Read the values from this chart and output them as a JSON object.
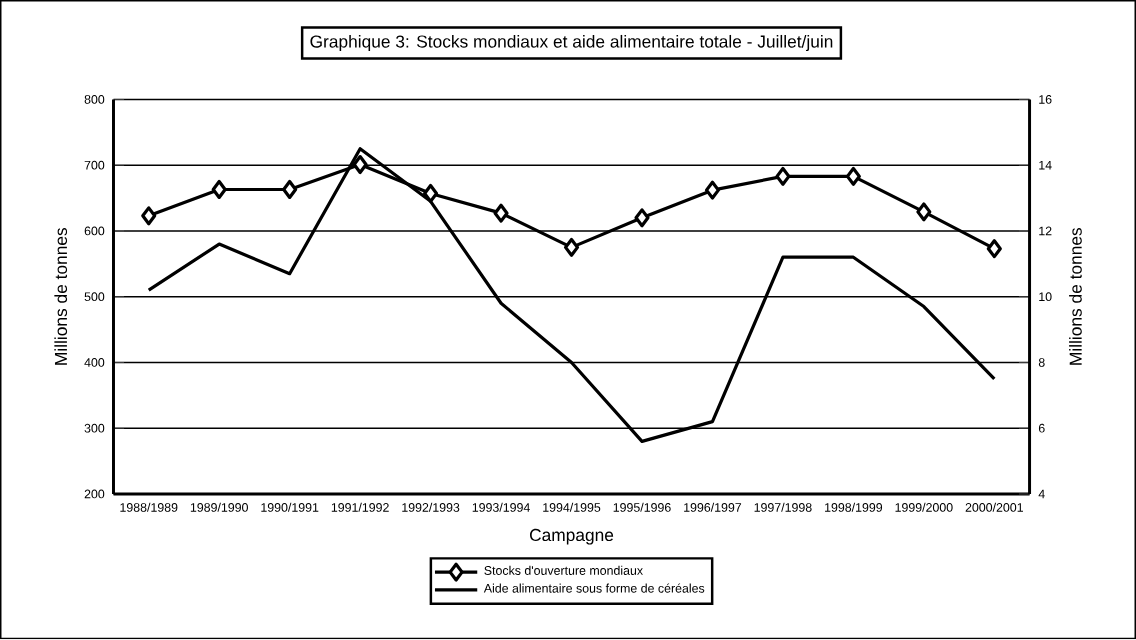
{
  "chart_data": {
    "type": "line",
    "title": "Graphique 3: Stocks mondiaux et aide alimentaire totale - Juillet/juin",
    "xlabel": "Campagne",
    "ylabel": "Millions de tonnes",
    "y2label": "Millions de tonnes",
    "categories": [
      "1988/1989",
      "1989/1990",
      "1990/1991",
      "1991/1992",
      "1992/1993",
      "1993/1994",
      "1994/1995",
      "1995/1996",
      "1996/1997",
      "1997/1998",
      "1998/1999",
      "1999/2000",
      "2000/2001"
    ],
    "series": [
      {
        "name": "Stocks d'ouverture mondiaux",
        "color": "#000000",
        "marker": "diamond",
        "values": [
          623,
          663,
          663,
          701,
          657,
          627,
          575,
          620,
          662,
          683,
          683,
          629,
          573
        ]
      },
      {
        "name": "Aide alimentaire sous forme de céréales",
        "color": "#000000",
        "marker": "none",
        "axis": "y2",
        "values": [
          10.2,
          11.6,
          10.7,
          14.5,
          12.9,
          9.8,
          8.0,
          5.6,
          6.2,
          11.2,
          11.2,
          9.7,
          7.5
        ]
      }
    ],
    "ylim": [
      200,
      800
    ],
    "yticks": [
      200,
      300,
      400,
      500,
      600,
      700,
      800
    ],
    "y2lim": [
      4,
      16
    ],
    "y2ticks": [
      4,
      6,
      8,
      10,
      12,
      14,
      16
    ],
    "grid": "y",
    "legend": "bottom"
  }
}
